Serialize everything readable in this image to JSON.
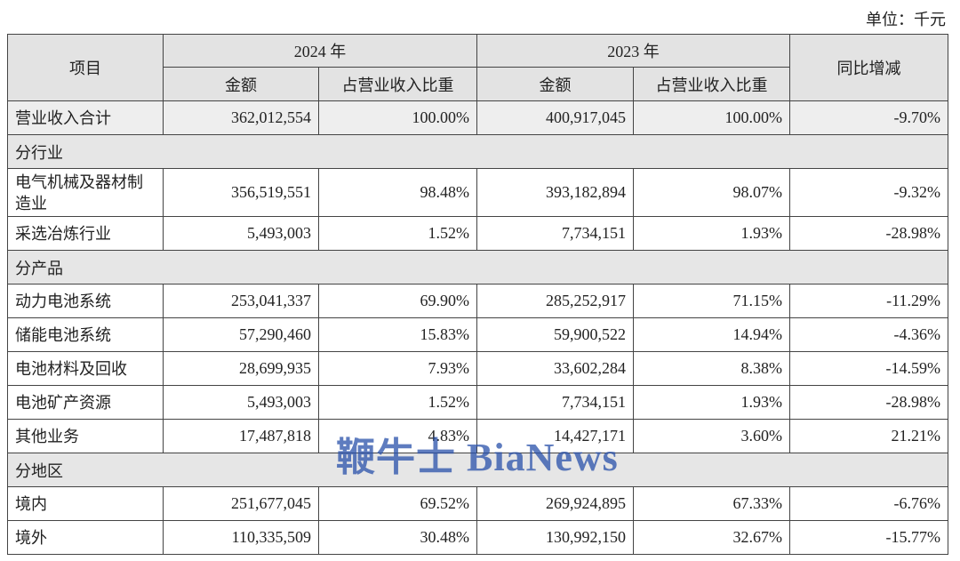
{
  "unit": "单位：千元",
  "header": {
    "item": "项目",
    "year_a": "2024 年",
    "year_b": "2023 年",
    "yoy": "同比增减",
    "sub": [
      "金额",
      "占营业收入比重",
      "金额",
      "占营业收入比重"
    ]
  },
  "rows": [
    [
      "营业收入合计",
      "362,012,554",
      "100.00%",
      "400,917,045",
      "100.00%",
      "-9.70%"
    ],
    [
      "分行业"
    ],
    [
      "电气机械及器材制造业",
      "356,519,551",
      "98.48%",
      "393,182,894",
      "98.07%",
      "-9.32%"
    ],
    [
      "采选冶炼行业",
      "5,493,003",
      "1.52%",
      "7,734,151",
      "1.93%",
      "-28.98%"
    ],
    [
      "分产品"
    ],
    [
      "动力电池系统",
      "253,041,337",
      "69.90%",
      "285,252,917",
      "71.15%",
      "-11.29%"
    ],
    [
      "储能电池系统",
      "57,290,460",
      "15.83%",
      "59,900,522",
      "14.94%",
      "-4.36%"
    ],
    [
      "电池材料及回收",
      "28,699,935",
      "7.93%",
      "33,602,284",
      "8.38%",
      "-14.59%"
    ],
    [
      "电池矿产资源",
      "5,493,003",
      "1.52%",
      "7,734,151",
      "1.93%",
      "-28.98%"
    ],
    [
      "其他业务",
      "17,487,818",
      "4.83%",
      "14,427,171",
      "3.60%",
      "21.21%"
    ],
    [
      "分地区"
    ],
    [
      "境内",
      "251,677,045",
      "69.52%",
      "269,924,895",
      "67.33%",
      "-6.76%"
    ],
    [
      "境外",
      "110,335,509",
      "30.48%",
      "130,992,150",
      "32.67%",
      "-15.77%"
    ]
  ],
  "watermark": "鞭牛士 BiaNews"
}
